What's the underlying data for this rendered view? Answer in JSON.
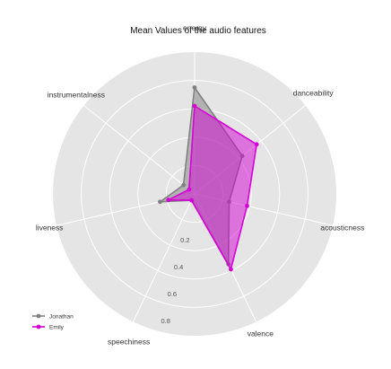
{
  "chart_data": {
    "type": "radar",
    "title": "Mean Values of the audio features",
    "axes": [
      "energy",
      "danceability",
      "acousticness",
      "valence",
      "speechiness",
      "liveness",
      "instrumentalness"
    ],
    "r_ticks": [
      "0.2",
      "0.4",
      "0.6",
      "0.8"
    ],
    "r_range": [
      0,
      1
    ],
    "grid": true,
    "legend_position": "bottom-left",
    "series": [
      {
        "name": "Jonathan",
        "color": "#808080",
        "fill": "#808080",
        "values": [
          0.75,
          0.43,
          0.25,
          0.55,
          0.05,
          0.25,
          0.1
        ]
      },
      {
        "name": "Emily",
        "color": "#d400d4",
        "fill": "#d400d4",
        "values": [
          0.62,
          0.56,
          0.38,
          0.59,
          0.05,
          0.19,
          0.05
        ]
      }
    ]
  }
}
